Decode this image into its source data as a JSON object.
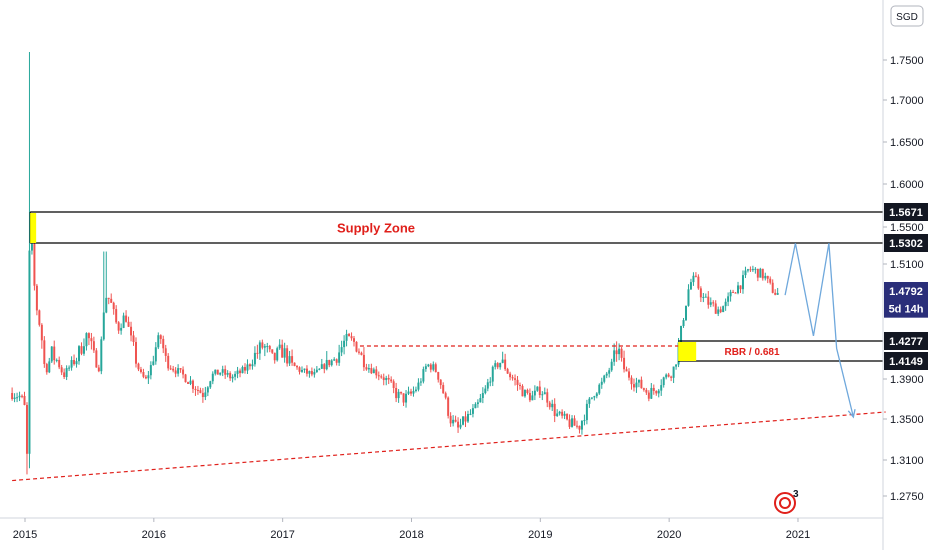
{
  "chart_data": {
    "type": "candlestick",
    "currency": "SGD",
    "ylim": [
      1.22,
      1.82
    ],
    "y_ticks": [
      "1.7500",
      "1.7000",
      "1.6500",
      "1.6000",
      "1.5500",
      "1.5100",
      "1.3900",
      "1.3500",
      "1.3100",
      "1.2750"
    ],
    "x_ticks": [
      "2015",
      "2016",
      "2017",
      "2018",
      "2019",
      "2020",
      "2021"
    ],
    "price_tags": [
      {
        "label": "1.5671",
        "value": 1.5671,
        "color": "#131722"
      },
      {
        "label": "1.5302",
        "value": 1.5302,
        "color": "#131722"
      },
      {
        "label": "1.4792",
        "value": 1.4792,
        "color": "#2a2e79"
      },
      {
        "label": "5d 14h",
        "value": 1.461,
        "color": "#2a2e79"
      },
      {
        "label": "1.4277",
        "value": 1.4277,
        "color": "#131722"
      },
      {
        "label": "1.4149",
        "value": 1.4149,
        "color": "#131722"
      }
    ],
    "annotations": {
      "supply_zone_label": "Supply Zone",
      "supply_zone_top": 1.5671,
      "supply_zone_bottom": 1.5302,
      "rbr_label": "RBR / 0.681",
      "rbr_top": 1.4277,
      "rbr_bottom": 1.4149,
      "resistance_level": 1.4245,
      "trendline_start": {
        "x": 2014.9,
        "y": 1.29
      },
      "trendline_end": {
        "x": 2021.68,
        "y": 1.357
      }
    },
    "projection_path": [
      {
        "x": 2020.9,
        "y": 1.475
      },
      {
        "x": 2020.98,
        "y": 1.53
      },
      {
        "x": 2021.12,
        "y": 1.433
      },
      {
        "x": 2021.24,
        "y": 1.53
      },
      {
        "x": 2021.3,
        "y": 1.423
      },
      {
        "x": 2021.43,
        "y": 1.352
      }
    ],
    "price_path": [
      [
        2014.9,
        1.376
      ],
      [
        2014.97,
        1.372
      ],
      [
        2015.0,
        1.36
      ],
      [
        2015.02,
        1.3
      ],
      [
        2015.035,
        1.525
      ],
      [
        2015.05,
        1.532
      ],
      [
        2015.08,
        1.47
      ],
      [
        2015.12,
        1.44
      ],
      [
        2015.16,
        1.4
      ],
      [
        2015.2,
        1.42
      ],
      [
        2015.25,
        1.415
      ],
      [
        2015.3,
        1.395
      ],
      [
        2015.36,
        1.41
      ],
      [
        2015.42,
        1.42
      ],
      [
        2015.48,
        1.435
      ],
      [
        2015.53,
        1.418
      ],
      [
        2015.58,
        1.405
      ],
      [
        2015.62,
        1.475
      ],
      [
        2015.66,
        1.47
      ],
      [
        2015.72,
        1.44
      ],
      [
        2015.78,
        1.455
      ],
      [
        2015.82,
        1.43
      ],
      [
        2015.86,
        1.415
      ],
      [
        2015.9,
        1.395
      ],
      [
        2015.94,
        1.388
      ],
      [
        2016.0,
        1.42
      ],
      [
        2016.05,
        1.432
      ],
      [
        2016.1,
        1.412
      ],
      [
        2016.15,
        1.405
      ],
      [
        2016.22,
        1.396
      ],
      [
        2016.3,
        1.385
      ],
      [
        2016.38,
        1.375
      ],
      [
        2016.45,
        1.395
      ],
      [
        2016.52,
        1.4
      ],
      [
        2016.6,
        1.392
      ],
      [
        2016.7,
        1.402
      ],
      [
        2016.78,
        1.418
      ],
      [
        2016.85,
        1.425
      ],
      [
        2016.92,
        1.415
      ],
      [
        2017.0,
        1.422
      ],
      [
        2017.08,
        1.408
      ],
      [
        2017.16,
        1.4
      ],
      [
        2017.25,
        1.395
      ],
      [
        2017.33,
        1.41
      ],
      [
        2017.42,
        1.418
      ],
      [
        2017.5,
        1.43
      ],
      [
        2017.58,
        1.425
      ],
      [
        2017.64,
        1.41
      ],
      [
        2017.72,
        1.4
      ],
      [
        2017.8,
        1.39
      ],
      [
        2017.88,
        1.375
      ],
      [
        2017.94,
        1.37
      ],
      [
        2018.0,
        1.375
      ],
      [
        2018.06,
        1.385
      ],
      [
        2018.12,
        1.41
      ],
      [
        2018.18,
        1.405
      ],
      [
        2018.24,
        1.38
      ],
      [
        2018.3,
        1.35
      ],
      [
        2018.36,
        1.34
      ],
      [
        2018.42,
        1.35
      ],
      [
        2018.5,
        1.36
      ],
      [
        2018.58,
        1.38
      ],
      [
        2018.64,
        1.405
      ],
      [
        2018.7,
        1.415
      ],
      [
        2018.76,
        1.395
      ],
      [
        2018.82,
        1.385
      ],
      [
        2018.88,
        1.375
      ],
      [
        2018.94,
        1.372
      ],
      [
        2019.0,
        1.38
      ],
      [
        2019.06,
        1.37
      ],
      [
        2019.12,
        1.355
      ],
      [
        2019.18,
        1.35
      ],
      [
        2019.24,
        1.345
      ],
      [
        2019.3,
        1.342
      ],
      [
        2019.36,
        1.36
      ],
      [
        2019.42,
        1.378
      ],
      [
        2019.48,
        1.385
      ],
      [
        2019.54,
        1.405
      ],
      [
        2019.6,
        1.425
      ],
      [
        2019.66,
        1.4
      ],
      [
        2019.72,
        1.388
      ],
      [
        2019.78,
        1.383
      ],
      [
        2019.84,
        1.376
      ],
      [
        2019.9,
        1.38
      ],
      [
        2019.96,
        1.392
      ],
      [
        2020.02,
        1.398
      ],
      [
        2020.08,
        1.428
      ],
      [
        2020.12,
        1.46
      ],
      [
        2020.16,
        1.488
      ],
      [
        2020.2,
        1.493
      ],
      [
        2020.26,
        1.472
      ],
      [
        2020.32,
        1.465
      ],
      [
        2020.38,
        1.46
      ],
      [
        2020.44,
        1.465
      ],
      [
        2020.5,
        1.48
      ],
      [
        2020.56,
        1.488
      ],
      [
        2020.62,
        1.505
      ],
      [
        2020.68,
        1.501
      ],
      [
        2020.74,
        1.496
      ],
      [
        2020.78,
        1.485
      ],
      [
        2020.82,
        1.478
      ],
      [
        2020.86,
        1.475
      ]
    ]
  },
  "logo_badge": "3",
  "colors": {
    "up": "#26a69a",
    "down": "#ef5350",
    "zone_line": "#000000",
    "projection": "#6fa8dc",
    "trendline": "#e0201b",
    "highlight": "#ffff00"
  }
}
